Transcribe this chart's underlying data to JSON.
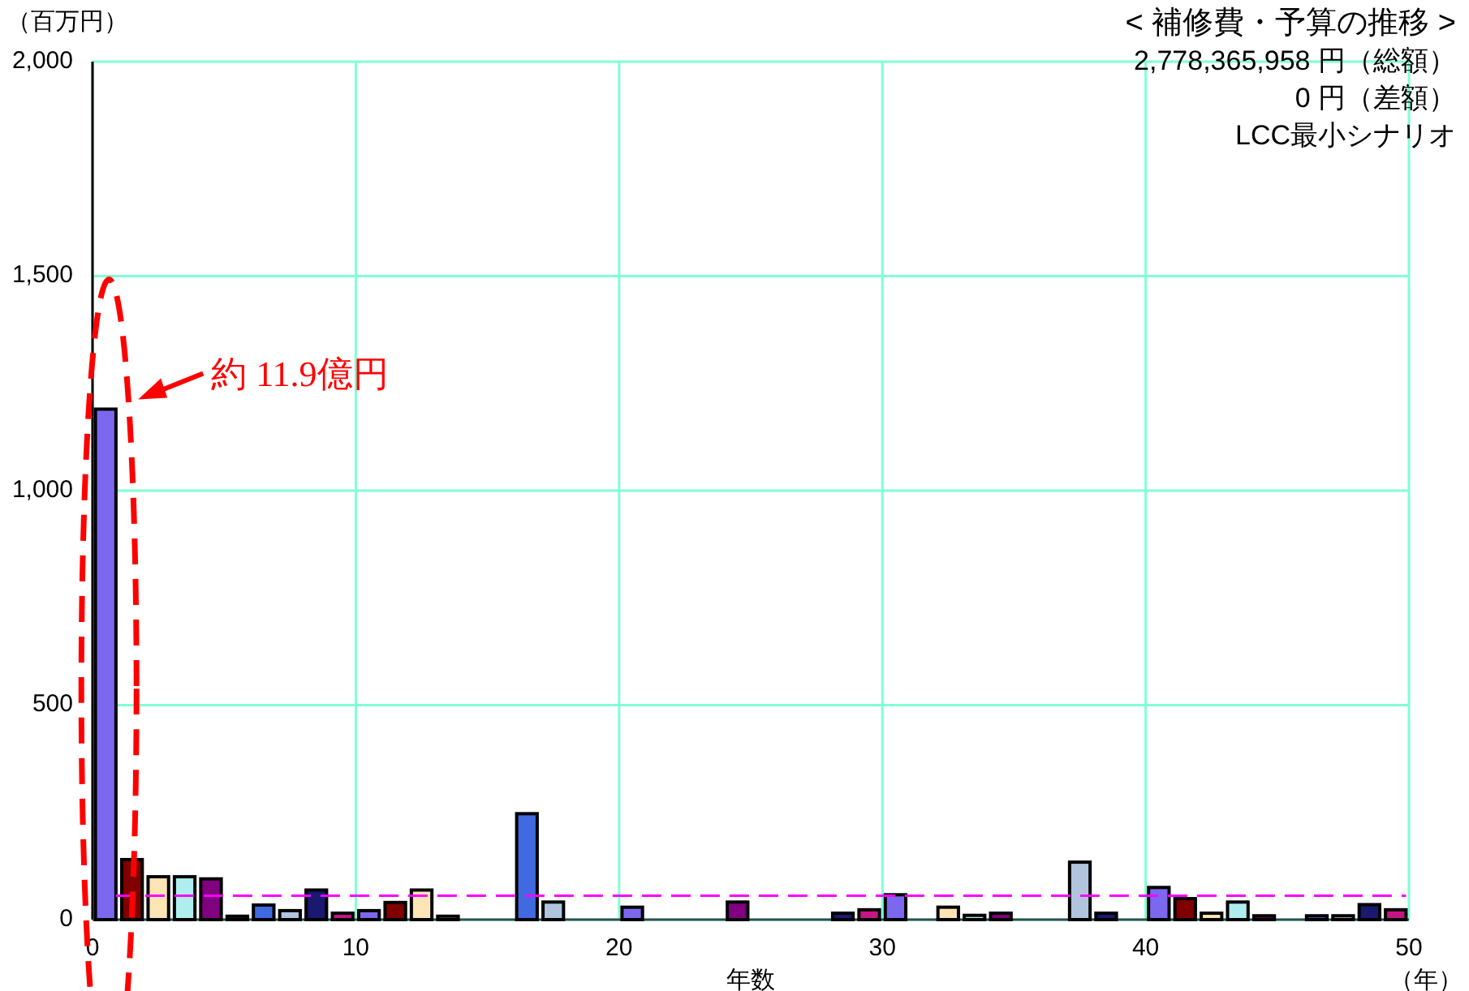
{
  "chart_data": {
    "type": "bar",
    "title": "< 補修費・予算の推移 >",
    "subtitle": "2,778,365,958 円（総額）",
    "ylabel": "（百万円）",
    "xlabel": "年数",
    "x": [
      0.5,
      1.5,
      2.5,
      3.5,
      4.5,
      5.5,
      6.5,
      7.5,
      8.5,
      9.5,
      10.5,
      11.5,
      12.5,
      13.5,
      14.5,
      15.5,
      16.5,
      17.5,
      18.5,
      19.5,
      20.5,
      21.5,
      22.5,
      23.5,
      24.5,
      25.5,
      26.5,
      27.5,
      28.5,
      29.5,
      30.5,
      31.5,
      32.5,
      33.5,
      34.5,
      35.5,
      36.5,
      37.5,
      38.5,
      39.5,
      40.5,
      41.5,
      42.5,
      43.5,
      44.5,
      45.5,
      46.5,
      47.5,
      48.5,
      49.5
    ],
    "values": [
      1190,
      140,
      100,
      100,
      95,
      8,
      34,
      21,
      69,
      15,
      21,
      40,
      69,
      8,
      0,
      0,
      247,
      41,
      0,
      0,
      29,
      0,
      0,
      0,
      41,
      0,
      0,
      0,
      15,
      23,
      58,
      0,
      29,
      10,
      15,
      0,
      0,
      134,
      15,
      0,
      75,
      49,
      15,
      41,
      9,
      0,
      9,
      9,
      35,
      23
    ],
    "colors": [
      "#7b68ee",
      "#800000",
      "#ffe4b5",
      "#afeeee",
      "#800080",
      "#2f4f4f",
      "#4169e1",
      "#b0c4de",
      "#191970",
      "#c71585",
      "#7b68ee",
      "#800000",
      "#ffe4b5",
      "#afeeee",
      "#800080",
      "#2f4f4f",
      "#4169e1",
      "#b0c4de",
      "#191970",
      "#c71585",
      "#7b68ee",
      "#800000",
      "#ffe4b5",
      "#afeeee",
      "#800080",
      "#2f4f4f",
      "#4169e1",
      "#b0c4de",
      "#191970",
      "#c71585",
      "#7b68ee",
      "#800000",
      "#ffe4b5",
      "#afeeee",
      "#800080",
      "#2f4f4f",
      "#4169e1",
      "#b0c4de",
      "#191970",
      "#c71585",
      "#7b68ee",
      "#800000",
      "#ffe4b5",
      "#afeeee",
      "#800080",
      "#2f4f4f",
      "#4169e1",
      "#b0c4de",
      "#191970",
      "#c71585"
    ],
    "xlim": [
      0,
      50
    ],
    "xticks": [
      0,
      10,
      20,
      30,
      40,
      50
    ],
    "ylim": [
      0,
      2000
    ],
    "yticks": [
      {
        "value": 0,
        "label": "0"
      },
      {
        "value": 500,
        "label": "500"
      },
      {
        "value": 1000,
        "label": "1,000"
      },
      {
        "value": 1500,
        "label": "1,500"
      },
      {
        "value": 2000,
        "label": "2,000"
      }
    ],
    "grid": true,
    "ref_lines": [
      {
        "axis": "y",
        "value": 56,
        "color": "#ff00ff",
        "line_style": "dashed"
      }
    ],
    "annotations": [
      "0 円（差額）",
      "LCC最小シナリオ",
      {
        "text": "約 11.9億円",
        "x": 0.5,
        "y": 1190
      },
      "（年）"
    ]
  }
}
